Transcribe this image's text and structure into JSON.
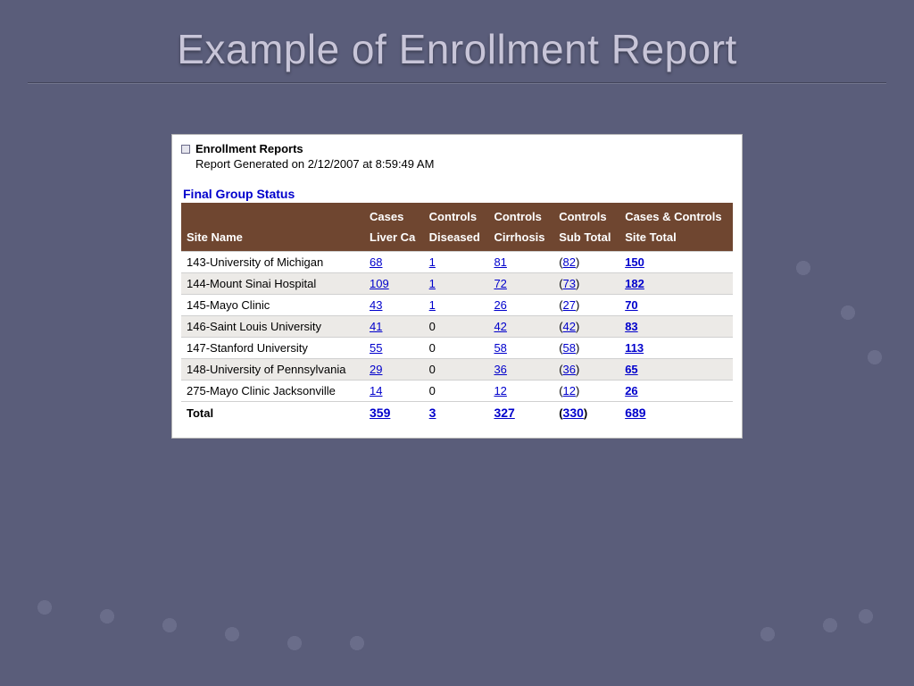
{
  "slide": {
    "title": "Example of Enrollment Report"
  },
  "report": {
    "heading": "Enrollment Reports",
    "generated": "Report Generated on 2/12/2007 at 8:59:49 AM",
    "section": "Final Group Status",
    "headers": {
      "site": "Site Name",
      "cases_top": "Cases",
      "cases_bot": "Liver Ca",
      "ctrl1_top": "Controls",
      "ctrl1_bot": "Diseased",
      "ctrl2_top": "Controls",
      "ctrl2_bot": "Cirrhosis",
      "ctrl3_top": "Controls",
      "ctrl3_bot": "Sub Total",
      "total_top": "Cases & Controls",
      "total_bot": "Site Total"
    },
    "header_bg": "#6f4630",
    "row_alt_bg": "#eceae7",
    "link_color": "#0000cc",
    "rows": [
      {
        "site": "143-University of Michigan",
        "cases": "68",
        "diseased": "1",
        "cirrhosis": "81",
        "sub": "82",
        "total": "150"
      },
      {
        "site": "144-Mount Sinai Hospital",
        "cases": "109",
        "diseased": "1",
        "cirrhosis": "72",
        "sub": "73",
        "total": "182"
      },
      {
        "site": "145-Mayo Clinic",
        "cases": "43",
        "diseased": "1",
        "cirrhosis": "26",
        "sub": "27",
        "total": "70"
      },
      {
        "site": "146-Saint Louis University",
        "cases": "41",
        "diseased": "0",
        "cirrhosis": "42",
        "sub": "42",
        "total": "83"
      },
      {
        "site": "147-Stanford University",
        "cases": "55",
        "diseased": "0",
        "cirrhosis": "58",
        "sub": "58",
        "total": "113"
      },
      {
        "site": "148-University of Pennsylvania",
        "cases": "29",
        "diseased": "0",
        "cirrhosis": "36",
        "sub": "36",
        "total": "65"
      },
      {
        "site": "275-Mayo Clinic Jacksonville",
        "cases": "14",
        "diseased": "0",
        "cirrhosis": "12",
        "sub": "12",
        "total": "26"
      }
    ],
    "totals": {
      "label": "Total",
      "cases": "359",
      "diseased": "3",
      "cirrhosis": "327",
      "sub": "330",
      "total": "689"
    }
  }
}
